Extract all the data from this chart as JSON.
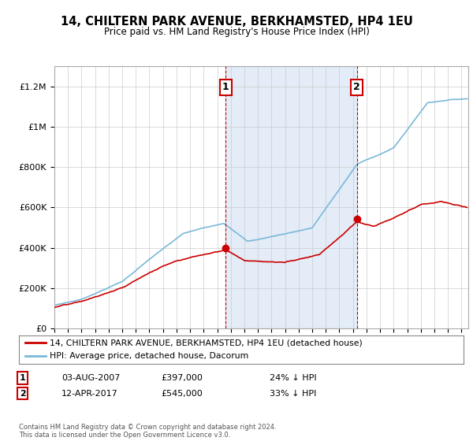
{
  "title": "14, CHILTERN PARK AVENUE, BERKHAMSTED, HP4 1EU",
  "subtitle": "Price paid vs. HM Land Registry's House Price Index (HPI)",
  "hpi_color": "#7ab8d9",
  "price_color": "#cc0000",
  "annotation1_date": "03-AUG-2007",
  "annotation1_price": 397000,
  "annotation1_label": "24% ↓ HPI",
  "annotation2_date": "12-APR-2017",
  "annotation2_price": 545000,
  "annotation2_label": "33% ↓ HPI",
  "legend_property": "14, CHILTERN PARK AVENUE, BERKHAMSTED, HP4 1EU (detached house)",
  "legend_hpi": "HPI: Average price, detached house, Dacorum",
  "footer": "Contains HM Land Registry data © Crown copyright and database right 2024.\nThis data is licensed under the Open Government Licence v3.0.",
  "ylim": [
    0,
    1300000
  ],
  "yticks": [
    0,
    200000,
    400000,
    600000,
    800000,
    1000000,
    1200000
  ],
  "ytick_labels": [
    "£0",
    "£200K",
    "£400K",
    "£600K",
    "£800K",
    "£1M",
    "£1.2M"
  ],
  "background_color": "#ffffff",
  "span_color": "#dce8f5"
}
